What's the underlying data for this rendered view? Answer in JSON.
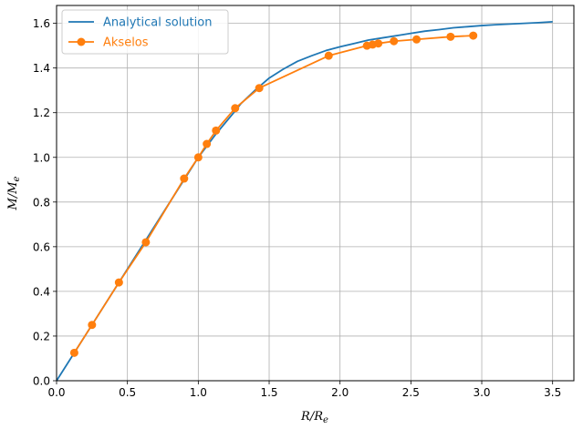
{
  "chart_data": {
    "type": "line",
    "xlabel": "R/R_e",
    "ylabel": "M/M_e",
    "xlim": [
      0.0,
      3.65
    ],
    "ylim": [
      0.0,
      1.68
    ],
    "xticks": [
      0.0,
      0.5,
      1.0,
      1.5,
      2.0,
      2.5,
      3.0,
      3.5
    ],
    "yticks": [
      0.0,
      0.2,
      0.4,
      0.6,
      0.8,
      1.0,
      1.2,
      1.4,
      1.6
    ],
    "xtick_labels": [
      "0.0",
      "0.5",
      "1.0",
      "1.5",
      "2.0",
      "2.5",
      "3.0",
      "3.5"
    ],
    "ytick_labels": [
      "0.0",
      "0.2",
      "0.4",
      "0.6",
      "0.8",
      "1.0",
      "1.2",
      "1.4",
      "1.6"
    ],
    "grid": true,
    "legend_position": "top-left",
    "series": [
      {
        "name": "Analytical solution",
        "color": "#1f77b4",
        "marker": "none",
        "x": [
          0.0,
          0.125,
          0.25,
          0.44,
          0.62,
          0.9,
          1.0,
          1.06,
          1.125,
          1.25,
          1.3,
          1.4,
          1.5,
          1.6,
          1.7,
          1.8,
          1.9,
          2.0,
          2.1,
          2.2,
          2.3,
          2.4,
          2.5,
          2.6,
          2.7,
          2.8,
          2.9,
          3.0,
          3.1,
          3.2,
          3.3,
          3.4,
          3.5
        ],
        "y": [
          0.0,
          0.125,
          0.25,
          0.44,
          0.62,
          0.9,
          1.0,
          1.05,
          1.105,
          1.2,
          1.24,
          1.3,
          1.355,
          1.395,
          1.43,
          1.455,
          1.478,
          1.495,
          1.51,
          1.525,
          1.535,
          1.545,
          1.555,
          1.565,
          1.572,
          1.58,
          1.585,
          1.59,
          1.594,
          1.597,
          1.6,
          1.603,
          1.607
        ]
      },
      {
        "name": "Akselos",
        "color": "#ff7f0e",
        "marker": "circle",
        "x": [
          0.125,
          0.25,
          0.44,
          0.63,
          0.9,
          1.0,
          1.06,
          1.125,
          1.26,
          1.43,
          1.92,
          2.19,
          2.23,
          2.27,
          2.38,
          2.54,
          2.78,
          2.94
        ],
        "y": [
          0.125,
          0.25,
          0.44,
          0.62,
          0.905,
          1.0,
          1.06,
          1.12,
          1.22,
          1.31,
          1.455,
          1.5,
          1.505,
          1.51,
          1.52,
          1.528,
          1.54,
          1.545
        ]
      }
    ]
  }
}
